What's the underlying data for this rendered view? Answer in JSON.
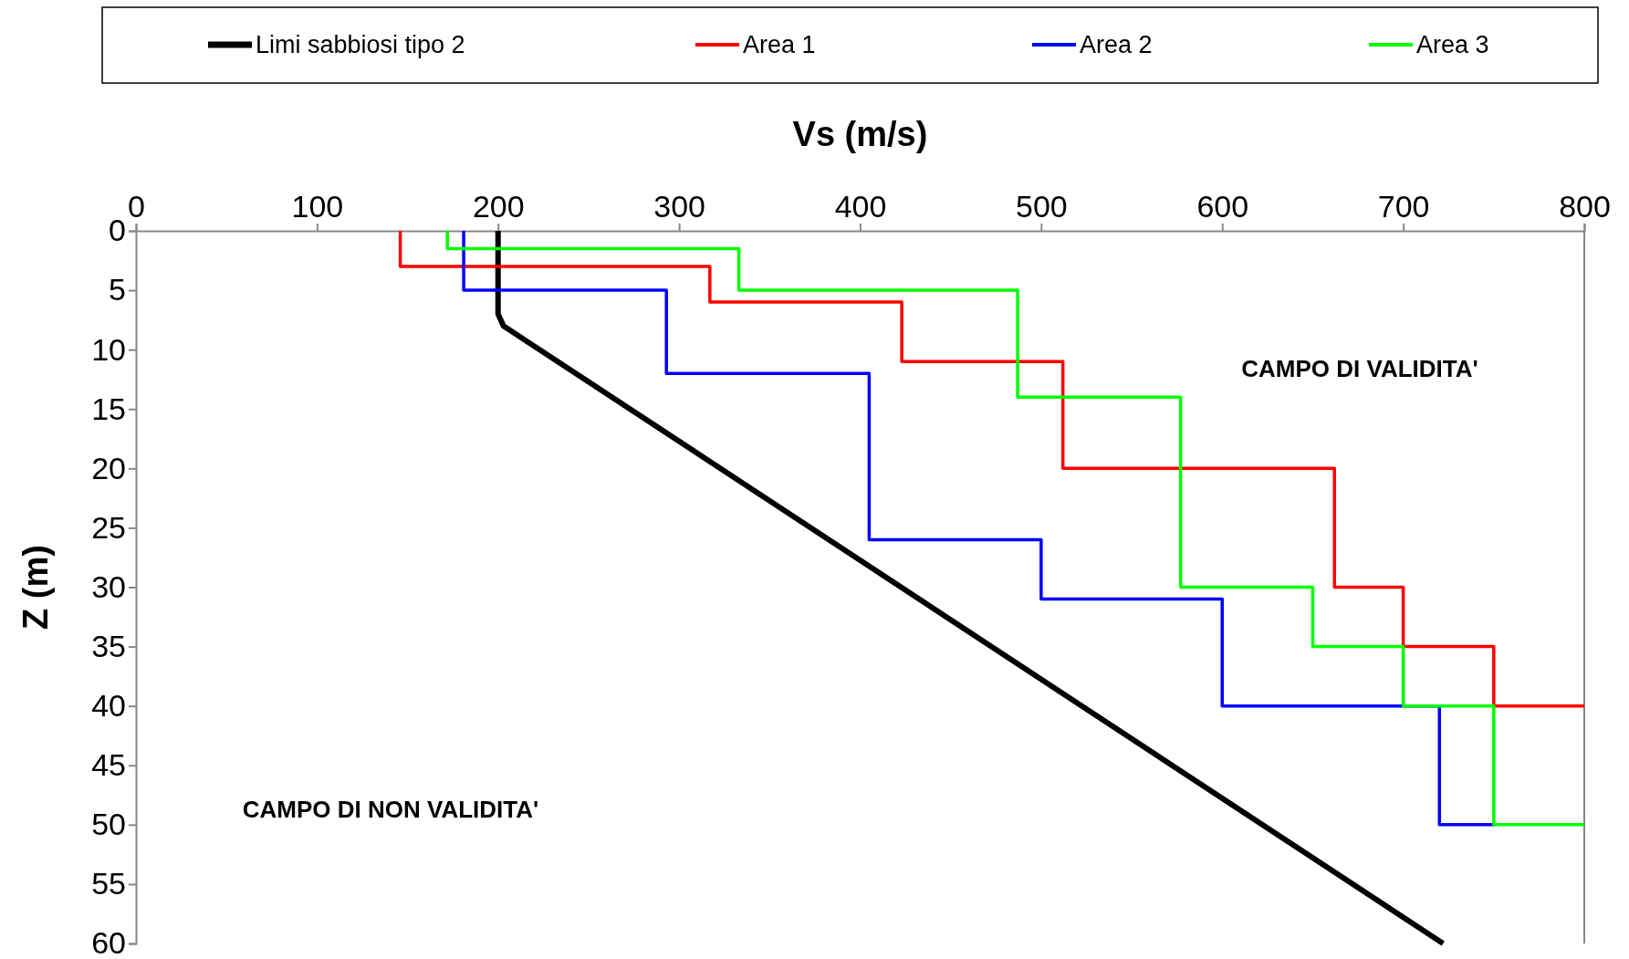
{
  "chart_data": {
    "type": "line",
    "xlabel": "Vs (m/s)",
    "ylabel": "Z (m)",
    "xlim": [
      0,
      800
    ],
    "xticks": [
      0,
      100,
      200,
      300,
      400,
      500,
      600,
      700,
      800
    ],
    "ylim": [
      60,
      0
    ],
    "yticks": [
      0,
      5,
      10,
      15,
      20,
      25,
      30,
      35,
      40,
      45,
      50,
      55,
      60
    ],
    "grid": false,
    "legend": "top",
    "marker": "none",
    "line_style": "solid",
    "series": [
      {
        "name": "Limi sabbiosi tipo 2",
        "color": "#000000",
        "x": [
          200,
          200,
          203,
          722
        ],
        "values": [
          0,
          7,
          8,
          60
        ]
      },
      {
        "name": "Area 1",
        "color": "#ff0000",
        "x": [
          146,
          146,
          317,
          317,
          423,
          423,
          512,
          512,
          662,
          662,
          700,
          700,
          750,
          750,
          800
        ],
        "values": [
          0,
          3,
          3,
          6,
          6,
          11,
          11,
          20,
          20,
          30,
          30,
          35,
          35,
          40,
          40
        ]
      },
      {
        "name": "Area 2",
        "color": "#0000ff",
        "x": [
          181,
          181,
          293,
          293,
          405,
          405,
          500,
          500,
          600,
          600,
          720,
          720,
          750
        ],
        "values": [
          0,
          5,
          5,
          12,
          12,
          26,
          26,
          31,
          31,
          40,
          40,
          50,
          50
        ]
      },
      {
        "name": "Area 3",
        "color": "#00ff00",
        "x": [
          172,
          172,
          333,
          333,
          487,
          487,
          577,
          577,
          650,
          650,
          700,
          700,
          750,
          750,
          800
        ],
        "values": [
          0,
          1.5,
          1.5,
          5,
          5,
          14,
          14,
          30,
          30,
          35,
          35,
          40,
          40,
          50,
          50
        ]
      }
    ],
    "annotations": [
      "CAMPO DI VALIDITA'",
      "CAMPO DI NON VALIDITA'"
    ]
  }
}
